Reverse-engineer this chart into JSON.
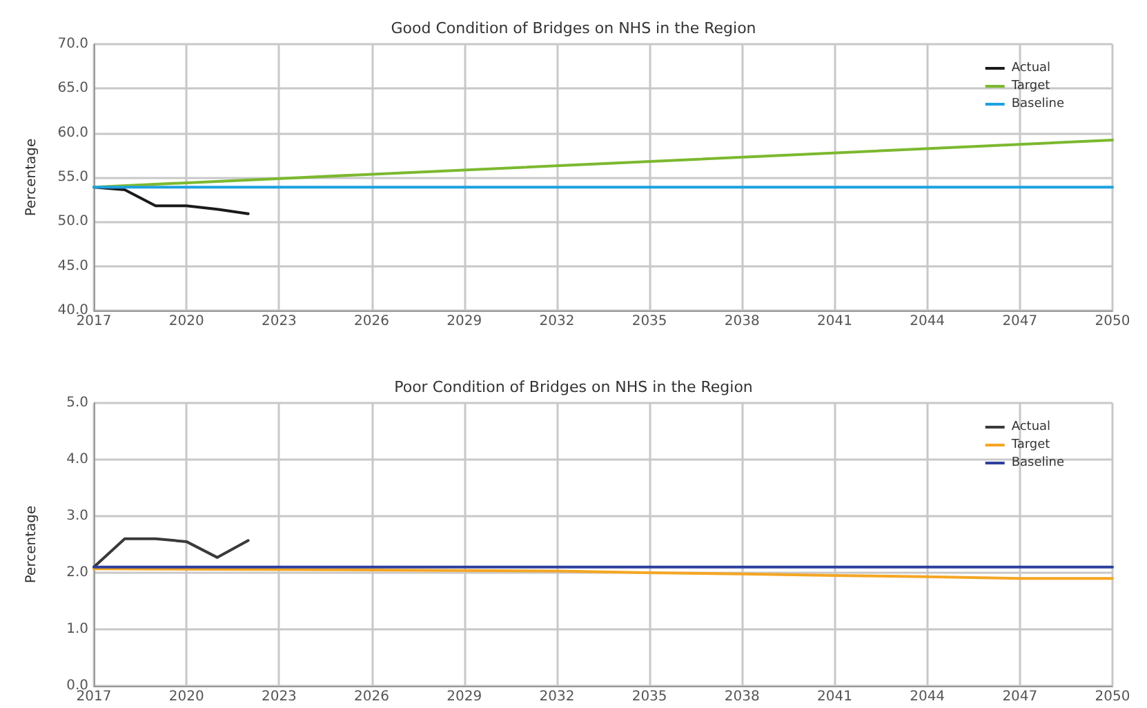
{
  "chart_data": [
    {
      "type": "line",
      "title": "Good Condition of Bridges on NHS in the Region",
      "ylabel": "Percentage",
      "x": [
        2017,
        2018,
        2019,
        2020,
        2021,
        2022
      ],
      "series": [
        {
          "name": "Actual",
          "color": "#1a1a1a",
          "values": [
            53.9,
            53.6,
            51.8,
            51.8,
            51.4,
            50.9
          ]
        },
        {
          "name": "Target",
          "color": "#7cb82f",
          "x": [
            2017,
            2050
          ],
          "values": [
            53.9,
            59.2
          ]
        },
        {
          "name": "Baseline",
          "color": "#1ea1e0",
          "x": [
            2017,
            2050
          ],
          "values": [
            53.9,
            53.9
          ]
        }
      ],
      "xlim": [
        2017,
        2050
      ],
      "xticks": [
        2017,
        2020,
        2023,
        2026,
        2029,
        2032,
        2035,
        2038,
        2041,
        2044,
        2047,
        2050
      ],
      "ylim": [
        40,
        70
      ],
      "yticks": [
        {
          "value": 40,
          "label": "40.0"
        },
        {
          "value": 45,
          "label": "45.0"
        },
        {
          "value": 50,
          "label": "50.0"
        },
        {
          "value": 55,
          "label": "55.0"
        },
        {
          "value": 60,
          "label": "60.0"
        },
        {
          "value": 65,
          "label": "65.0"
        },
        {
          "value": 70,
          "label": "70.0"
        }
      ],
      "grid": true,
      "legend": "top right",
      "marker": "none",
      "line_style": "solid"
    },
    {
      "type": "line",
      "title": "Poor Condition of Bridges on NHS in the Region",
      "ylabel": "Percentage",
      "x": [
        2017,
        2018,
        2019,
        2020,
        2021,
        2022
      ],
      "series": [
        {
          "name": "Actual",
          "color": "#3a3a3a",
          "values": [
            2.1,
            2.6,
            2.6,
            2.55,
            2.27,
            2.57
          ]
        },
        {
          "name": "Target",
          "color": "#f5a623",
          "x": [
            2017,
            2026,
            2032,
            2035,
            2038,
            2041,
            2044,
            2047,
            2050
          ],
          "values": [
            2.07,
            2.05,
            2.03,
            2.0,
            1.98,
            1.95,
            1.93,
            1.9,
            1.9
          ]
        },
        {
          "name": "Baseline",
          "color": "#2e3f9e",
          "x": [
            2017,
            2050
          ],
          "values": [
            2.1,
            2.1
          ]
        }
      ],
      "xlim": [
        2017,
        2050
      ],
      "xticks": [
        2017,
        2020,
        2023,
        2026,
        2029,
        2032,
        2035,
        2038,
        2041,
        2044,
        2047,
        2050
      ],
      "ylim": [
        0,
        5
      ],
      "yticks": [
        {
          "value": 0,
          "label": "0.0"
        },
        {
          "value": 1,
          "label": "1.0"
        },
        {
          "value": 2,
          "label": "2.0"
        },
        {
          "value": 3,
          "label": "3.0"
        },
        {
          "value": 4,
          "label": "4.0"
        },
        {
          "value": 5,
          "label": "5.0"
        }
      ],
      "grid": true,
      "legend": "top right",
      "marker": "none",
      "line_style": "solid"
    }
  ]
}
